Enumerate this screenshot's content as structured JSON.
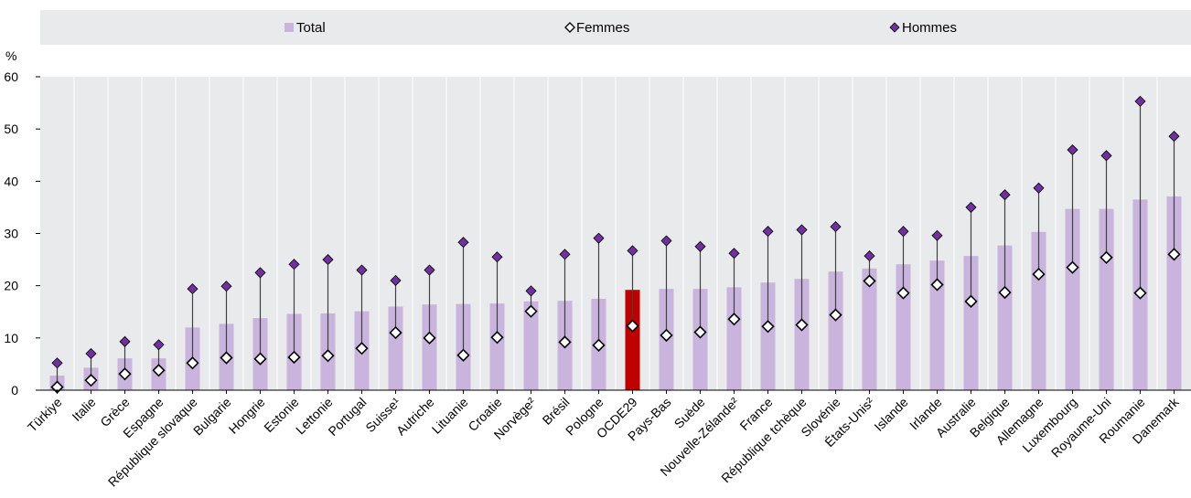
{
  "colors": {
    "total": "#c8b4dc",
    "highlight": "#c00000",
    "men": "#7030a0",
    "women_fill": "#ffffff",
    "women_stroke": "#000000",
    "whisker": "#404040",
    "grid": "#ffffff",
    "plot_bg": "#e9eaec",
    "legend_bg": "#e9eaec"
  },
  "legend": {
    "total": "Total",
    "women": "Femmes",
    "men": "Hommes",
    "placement": "top"
  },
  "chart_data": {
    "type": "bar",
    "title": "",
    "xlabel": "",
    "ylabel": "%",
    "ylim": [
      0,
      60
    ],
    "yticks": [
      "0",
      "10",
      "20",
      "30",
      "40",
      "50",
      "60"
    ],
    "grid": "vertical",
    "highlight_category": "OCDE29",
    "categories": [
      "Türkiye",
      "Italie",
      "Grèce",
      "Espagne",
      "République slovaque",
      "Bulgarie",
      "Hongrie",
      "Estonie",
      "Lettonie",
      "Portugal",
      "Suisse¹",
      "Autriche",
      "Lituanie",
      "Croatie",
      "Norvège²",
      "Brésil",
      "Pologne",
      "OCDE29",
      "Pays-Bas",
      "Suède",
      "Nouvelle-Zélande²",
      "France",
      "République tchèque",
      "Slovénie",
      "États-Unis²",
      "Islande",
      "Irlande",
      "Australie",
      "Belgique",
      "Allemagne",
      "Luxembourg",
      "Royaume-Uni",
      "Roumanie",
      "Danemark"
    ],
    "series": [
      {
        "name": "Total",
        "kind": "bar",
        "values": [
          2.8,
          4.3,
          6.1,
          6.1,
          12.0,
          12.7,
          13.8,
          14.6,
          14.7,
          15.1,
          16.0,
          16.4,
          16.5,
          16.6,
          17.0,
          17.1,
          17.5,
          19.2,
          19.4,
          19.4,
          19.7,
          20.6,
          21.3,
          22.7,
          23.3,
          24.1,
          24.8,
          25.7,
          27.7,
          30.3,
          34.7,
          34.7,
          36.5,
          37.1
        ]
      },
      {
        "name": "Femmes",
        "kind": "marker",
        "values": [
          0.6,
          1.9,
          3.1,
          3.8,
          5.2,
          6.2,
          6.0,
          6.3,
          6.6,
          8.0,
          11.0,
          10.0,
          6.7,
          10.1,
          15.1,
          9.2,
          8.6,
          12.3,
          10.5,
          11.1,
          13.6,
          12.2,
          12.5,
          14.4,
          20.9,
          18.6,
          20.2,
          17.0,
          18.7,
          22.2,
          23.5,
          25.4,
          18.6,
          26.0
        ]
      },
      {
        "name": "Hommes",
        "kind": "marker",
        "values": [
          5.2,
          7.0,
          9.3,
          8.7,
          19.4,
          19.9,
          22.5,
          24.1,
          25.0,
          23.0,
          21.0,
          23.0,
          28.3,
          25.5,
          19.0,
          26.0,
          29.1,
          26.7,
          28.6,
          27.5,
          26.2,
          30.4,
          30.7,
          31.3,
          25.7,
          30.4,
          29.6,
          35.0,
          37.4,
          38.7,
          46.0,
          44.9,
          55.3,
          48.6
        ]
      }
    ]
  }
}
